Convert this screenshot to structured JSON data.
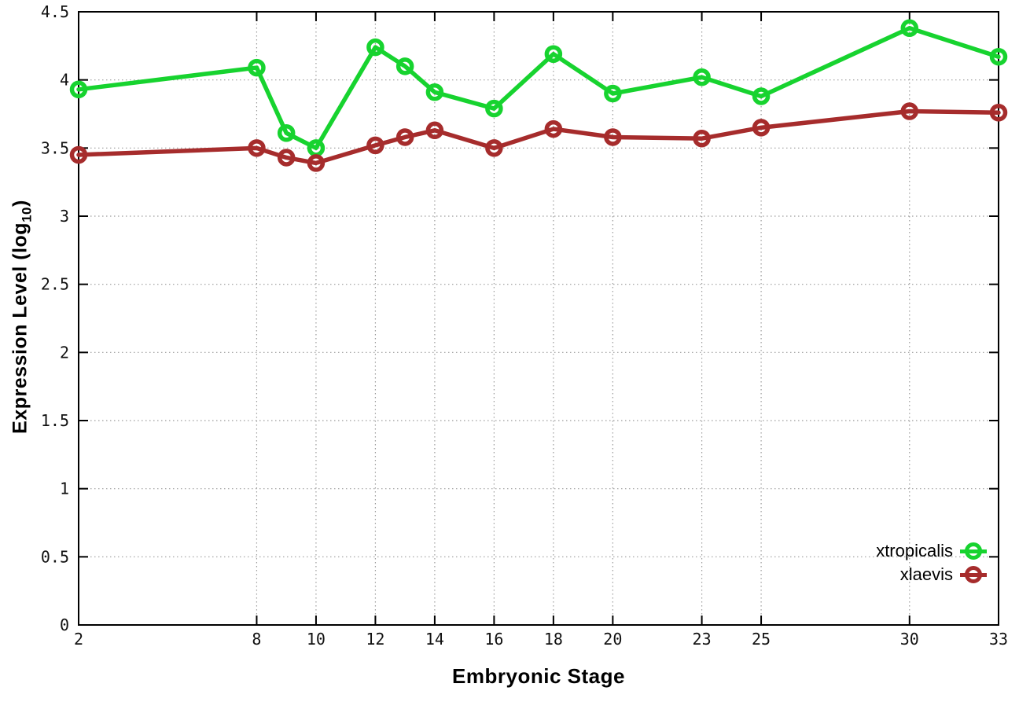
{
  "chart_data": {
    "type": "line",
    "title": "",
    "xlabel": "Embryonic Stage",
    "ylabel": "Expression Level (log10)",
    "ylabel_parts": {
      "main": "Expression Level (log",
      "sub": "10",
      "end": ")"
    },
    "xlim": [
      2,
      33
    ],
    "ylim": [
      0,
      4.5
    ],
    "grid": true,
    "grid_style": "dotted",
    "legend_position": "inside-bottom-right",
    "background_color": "#ffffff",
    "axis_color": "#000000",
    "grid_color": "#9c9c9c",
    "x": [
      2,
      8,
      9,
      10,
      12,
      13,
      14,
      16,
      18,
      20,
      23,
      25,
      30,
      33
    ],
    "x_ticks": [
      2,
      8,
      10,
      12,
      14,
      16,
      18,
      20,
      23,
      25,
      30,
      33
    ],
    "x_tick_labels": [
      "2",
      "8",
      "10",
      "12",
      "14",
      "16",
      "18",
      "20",
      "23",
      "25",
      "30",
      "33"
    ],
    "y_ticks": [
      0,
      0.5,
      1,
      1.5,
      2,
      2.5,
      3,
      3.5,
      4,
      4.5
    ],
    "y_tick_labels": [
      "0",
      "0.5",
      "1",
      "1.5",
      "2",
      "2.5",
      "3",
      "3.5",
      "4",
      "4.5"
    ],
    "marker": "open-circle",
    "series": [
      {
        "name": "xtropicalis",
        "color": "#17d32f",
        "values": [
          3.93,
          4.09,
          3.61,
          3.5,
          4.24,
          4.1,
          3.91,
          3.79,
          4.19,
          3.9,
          4.02,
          3.88,
          4.38,
          4.17
        ]
      },
      {
        "name": "xlaevis",
        "color": "#a62c2c",
        "values": [
          3.45,
          3.5,
          3.43,
          3.39,
          3.52,
          3.58,
          3.63,
          3.5,
          3.64,
          3.58,
          3.57,
          3.65,
          3.77,
          3.76
        ]
      }
    ]
  }
}
